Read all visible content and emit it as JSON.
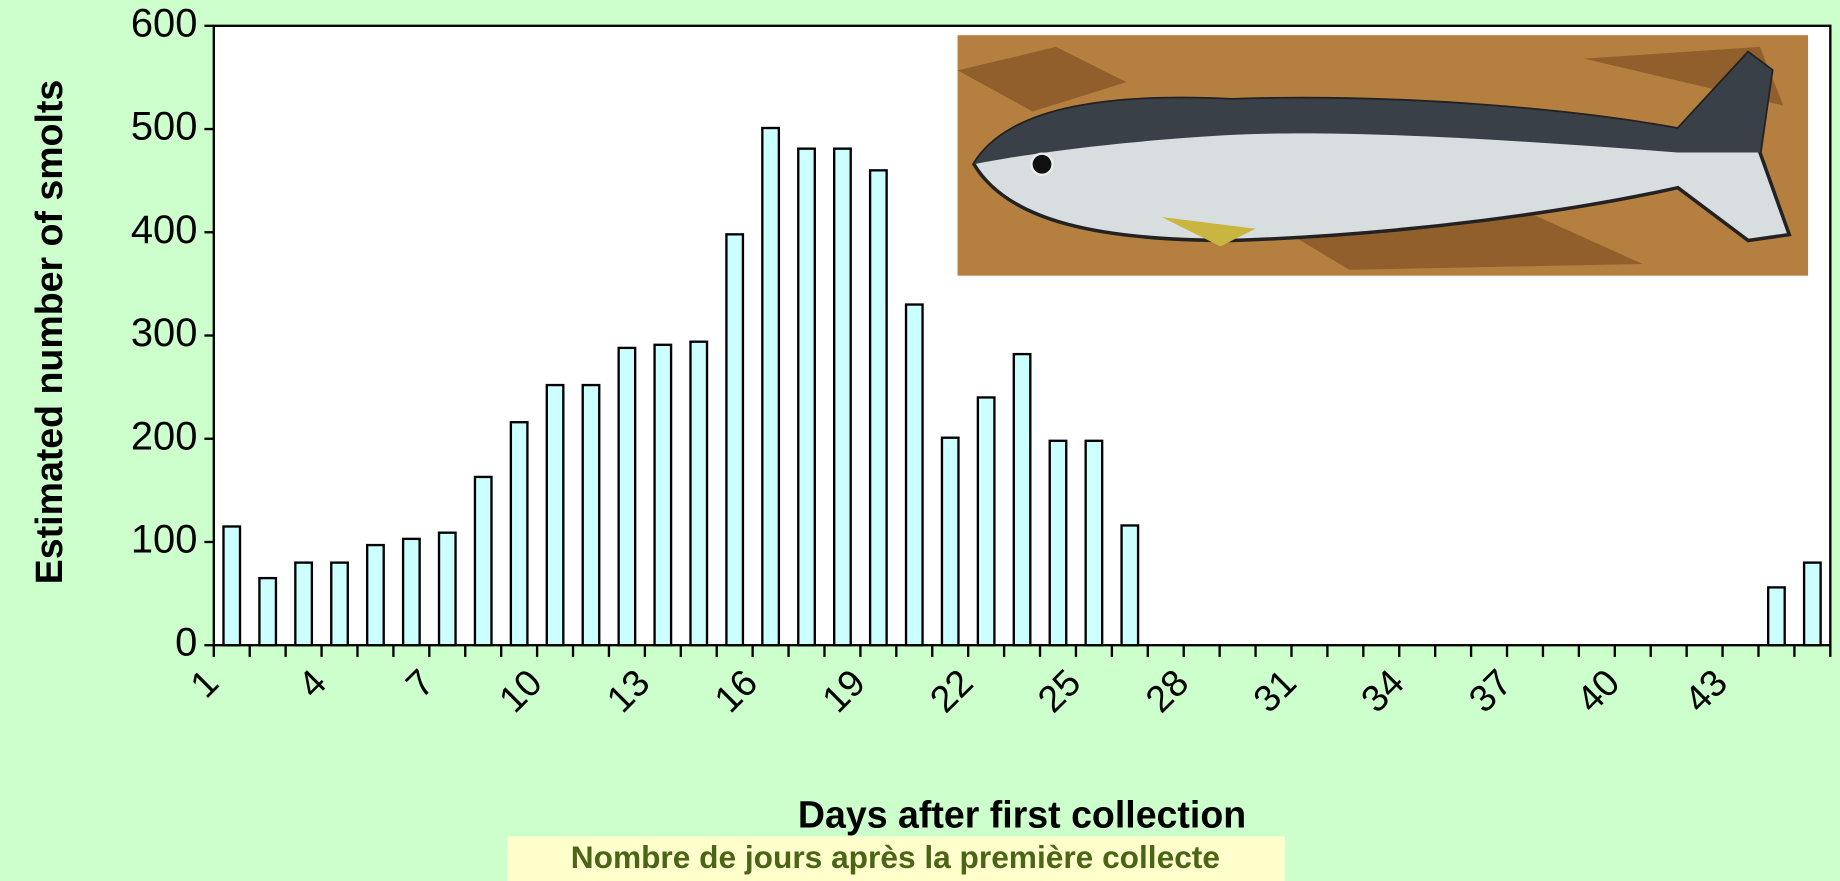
{
  "chart_data": {
    "type": "bar",
    "ylabel": "Estimated number of smolts",
    "xlabel": "Days after first collection",
    "subtitle": "Nombre de jours après la première collecte",
    "categories": [
      "1",
      null,
      null,
      "4",
      null,
      null,
      "7",
      null,
      null,
      "10",
      null,
      null,
      "13",
      null,
      null,
      "16",
      null,
      null,
      "19",
      null,
      null,
      "22",
      null,
      null,
      "25",
      null,
      null,
      "28",
      null,
      null,
      "31",
      null,
      null,
      "34",
      null,
      null,
      "37",
      null,
      null,
      "40",
      null,
      null,
      "43",
      null,
      null
    ],
    "values": [
      115,
      65,
      80,
      80,
      97,
      103,
      109,
      163,
      216,
      252,
      252,
      288,
      291,
      294,
      398,
      501,
      481,
      481,
      460,
      330,
      201,
      240,
      282,
      198,
      198,
      116,
      0,
      0,
      0,
      0,
      0,
      0,
      0,
      0,
      0,
      0,
      0,
      0,
      0,
      0,
      0,
      0,
      0,
      56,
      80
    ],
    "color": "#ccffff",
    "ylim": [
      0,
      600
    ],
    "yticks": [
      0,
      100,
      200,
      300,
      400,
      500,
      600
    ]
  }
}
